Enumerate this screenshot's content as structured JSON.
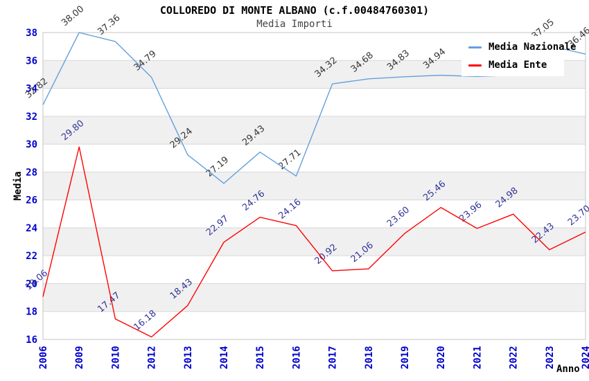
{
  "title": "COLLOREDO DI MONTE ALBANO (c.f.00484760301)",
  "subtitle": "Media Importi",
  "axes": {
    "y_label": "Media",
    "x_label": "Anno",
    "y_ticks": [
      38,
      36,
      34,
      32,
      30,
      28,
      26,
      24,
      22,
      20,
      18,
      16
    ]
  },
  "legend": {
    "items": [
      {
        "label": "Media Nazionale",
        "color": "#64a0dc"
      },
      {
        "label": "Media Ente",
        "color": "#ff0000"
      }
    ]
  },
  "colors": {
    "axis_text": "#0000cc",
    "band": "#f0f0f0",
    "grid": "#d8d8d8",
    "border": "#c4c4c4",
    "national_line": "#64a0dc",
    "ente_line": "#ff0000",
    "national_label": "#363636",
    "ente_label": "#333399"
  },
  "chart_data": {
    "type": "line",
    "x_categories": [
      "2006",
      "2009",
      "2010",
      "2012",
      "2013",
      "2014",
      "2015",
      "2016",
      "2017",
      "2018",
      "2019",
      "2020",
      "2021",
      "2022",
      "2023",
      "2024"
    ],
    "ylim": [
      16,
      38
    ],
    "grid": "horizontal-bands",
    "legend_position": "top-right",
    "series": [
      {
        "name": "Media Nazionale",
        "values": [
          32.82,
          38.0,
          37.36,
          34.79,
          29.24,
          27.19,
          29.43,
          27.71,
          34.32,
          34.68,
          34.83,
          34.94,
          34.85,
          34.95,
          37.05,
          36.46
        ],
        "labels": [
          "32.82",
          "38.00",
          "37.36",
          "34.79",
          "29.24",
          "27.19",
          "29.43",
          "27.71",
          "34.32",
          "34.68",
          "34.83",
          "34.94",
          "",
          "",
          "37.05",
          "36.46"
        ]
      },
      {
        "name": "Media Ente",
        "values": [
          19.06,
          29.8,
          17.47,
          16.18,
          18.43,
          22.97,
          24.76,
          24.16,
          20.92,
          21.06,
          23.6,
          25.46,
          23.96,
          24.98,
          22.43,
          23.7
        ],
        "labels": [
          "19.06",
          "29.80",
          "17.47",
          "16.18",
          "18.43",
          "22.97",
          "24.76",
          "24.16",
          "20.92",
          "21.06",
          "23.60",
          "25.46",
          "23.96",
          "24.98",
          "22.43",
          "23.70"
        ]
      }
    ]
  }
}
